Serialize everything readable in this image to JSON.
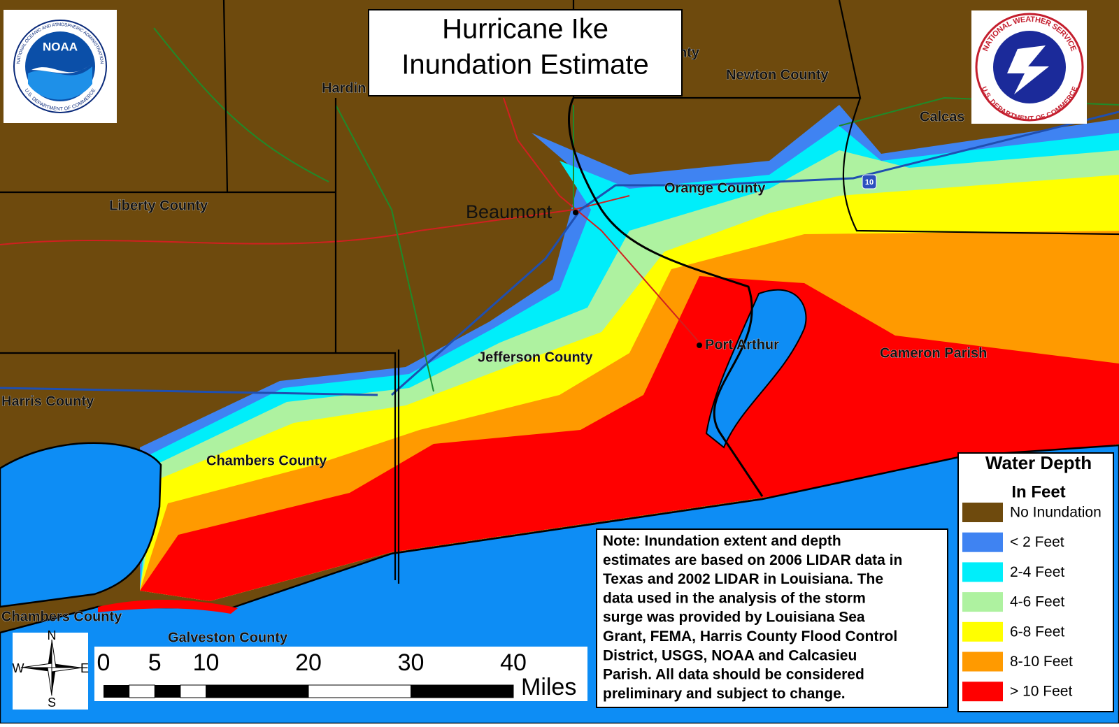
{
  "header": {
    "title": [
      "Hurricane Ike",
      "Inundation Estimate"
    ]
  },
  "logos": {
    "noaa": {
      "abbr": "NOAA",
      "ring_top": "NATIONAL OCEANIC AND ATMOSPHERIC ADMINISTRATION",
      "ring_bottom": "U.S. DEPARTMENT OF COMMERCE"
    },
    "nws": {
      "ring_top": "NATIONAL WEATHER SERVICE",
      "ring_bottom": "U.S. DEPARTMENT OF COMMERCE"
    }
  },
  "places": {
    "hardin": "Hardin",
    "jasper": "nty",
    "newton": "Newton County",
    "calcasieu": "Calcas",
    "liberty": "Liberty County",
    "beaumont": "Beaumont",
    "orange": "Orange County",
    "port_arthur": "Port Arthur",
    "jefferson": "Jefferson County",
    "cameron": "Cameron Parish",
    "harris": "Harris County",
    "chambers": "Chambers County",
    "chambers_2": "Chambers County",
    "galveston": "Galveston County",
    "highway": "10"
  },
  "legend": {
    "title": [
      "Water Depth",
      "In Feet"
    ],
    "items": [
      {
        "label": "No Inundation",
        "color": "#6e4a0d"
      },
      {
        "label": "< 2 Feet",
        "color": "#3f83f2"
      },
      {
        "label": "2-4 Feet",
        "color": "#00eefa"
      },
      {
        "label": "4-6 Feet",
        "color": "#aef2a0"
      },
      {
        "label": "6-8 Feet",
        "color": "#ffff00"
      },
      {
        "label": "8-10 Feet",
        "color": "#ff9a00"
      },
      {
        "label": "> 10 Feet",
        "color": "#ff0000"
      }
    ]
  },
  "water_color": "#0d8df5",
  "note": [
    "Note: Inundation extent and depth",
    "estimates  are based on 2006 LIDAR data in",
    "Texas and 2002 LIDAR in Louisiana. The",
    "data used in the analysis of the storm",
    "surge was provided by Louisiana Sea",
    "Grant, FEMA, Harris County Flood Control",
    "District, USGS, NOAA and Calcasieu",
    "Parish. All data should be considered",
    "preliminary and subject to change."
  ],
  "scale": {
    "ticks": [
      0,
      5,
      10,
      20,
      30,
      40
    ],
    "unit": "Miles"
  },
  "compass": {
    "n": "N",
    "s": "S",
    "e": "E",
    "w": "W"
  }
}
